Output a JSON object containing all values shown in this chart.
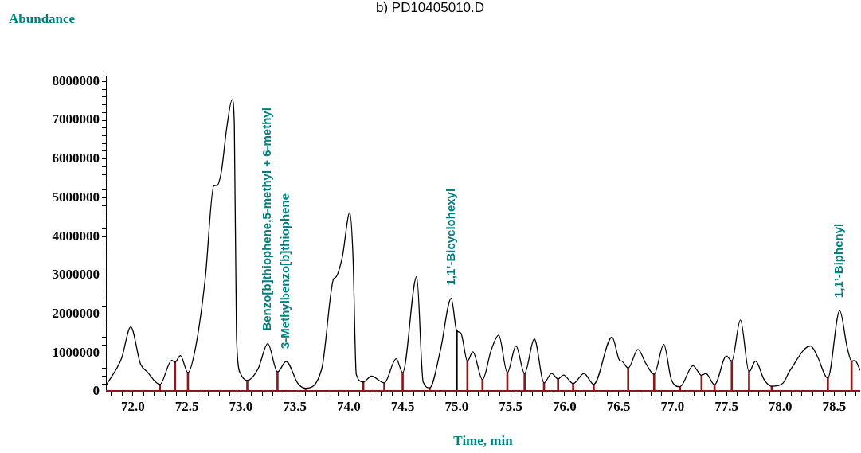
{
  "chart_data": {
    "type": "line",
    "title": "b) PD10405010.D",
    "xlabel": "Time, min",
    "ylabel": "Abundance",
    "xlim": [
      71.75,
      78.74
    ],
    "ylim": [
      0,
      8150000
    ],
    "xticks": [
      {
        "value": 71.8,
        "label": null
      },
      {
        "value": 71.9,
        "label": null
      },
      {
        "value": 72.0,
        "label": "72.0"
      },
      {
        "value": 72.1,
        "label": null
      },
      {
        "value": 72.2,
        "label": null
      },
      {
        "value": 72.3,
        "label": null
      },
      {
        "value": 72.4,
        "label": null
      },
      {
        "value": 72.5,
        "label": "72.5"
      },
      {
        "value": 72.6,
        "label": null
      },
      {
        "value": 72.7,
        "label": null
      },
      {
        "value": 72.8,
        "label": null
      },
      {
        "value": 72.9,
        "label": null
      },
      {
        "value": 73.0,
        "label": "73.0"
      },
      {
        "value": 73.1,
        "label": null
      },
      {
        "value": 73.2,
        "label": null
      },
      {
        "value": 73.3,
        "label": null
      },
      {
        "value": 73.4,
        "label": null
      },
      {
        "value": 73.5,
        "label": "73.5"
      },
      {
        "value": 73.6,
        "label": null
      },
      {
        "value": 73.7,
        "label": null
      },
      {
        "value": 73.8,
        "label": null
      },
      {
        "value": 73.9,
        "label": null
      },
      {
        "value": 74.0,
        "label": "74.0"
      },
      {
        "value": 74.1,
        "label": null
      },
      {
        "value": 74.2,
        "label": null
      },
      {
        "value": 74.3,
        "label": null
      },
      {
        "value": 74.4,
        "label": null
      },
      {
        "value": 74.5,
        "label": "74.5"
      },
      {
        "value": 74.6,
        "label": null
      },
      {
        "value": 74.7,
        "label": null
      },
      {
        "value": 74.8,
        "label": null
      },
      {
        "value": 74.9,
        "label": null
      },
      {
        "value": 75.0,
        "label": "75.0"
      },
      {
        "value": 75.1,
        "label": null
      },
      {
        "value": 75.2,
        "label": null
      },
      {
        "value": 75.3,
        "label": null
      },
      {
        "value": 75.4,
        "label": null
      },
      {
        "value": 75.5,
        "label": "75.5"
      },
      {
        "value": 75.6,
        "label": null
      },
      {
        "value": 75.7,
        "label": null
      },
      {
        "value": 75.8,
        "label": null
      },
      {
        "value": 75.9,
        "label": null
      },
      {
        "value": 76.0,
        "label": "76.0"
      },
      {
        "value": 76.1,
        "label": null
      },
      {
        "value": 76.2,
        "label": null
      },
      {
        "value": 76.3,
        "label": null
      },
      {
        "value": 76.4,
        "label": null
      },
      {
        "value": 76.5,
        "label": "76.5"
      },
      {
        "value": 76.6,
        "label": null
      },
      {
        "value": 76.7,
        "label": null
      },
      {
        "value": 76.8,
        "label": null
      },
      {
        "value": 76.9,
        "label": null
      },
      {
        "value": 77.0,
        "label": "77.0"
      },
      {
        "value": 77.1,
        "label": null
      },
      {
        "value": 77.2,
        "label": null
      },
      {
        "value": 77.3,
        "label": null
      },
      {
        "value": 77.4,
        "label": null
      },
      {
        "value": 77.5,
        "label": "77.5"
      },
      {
        "value": 77.6,
        "label": null
      },
      {
        "value": 77.7,
        "label": null
      },
      {
        "value": 77.8,
        "label": null
      },
      {
        "value": 77.9,
        "label": null
      },
      {
        "value": 78.0,
        "label": "78.0"
      },
      {
        "value": 78.1,
        "label": null
      },
      {
        "value": 78.2,
        "label": null
      },
      {
        "value": 78.3,
        "label": null
      },
      {
        "value": 78.4,
        "label": null
      },
      {
        "value": 78.5,
        "label": "78.5"
      },
      {
        "value": 78.6,
        "label": null
      },
      {
        "value": 78.7,
        "label": null
      }
    ],
    "yticks": [
      0,
      {
        "value": 200000,
        "label": null
      },
      {
        "value": 400000,
        "label": null
      },
      {
        "value": 600000,
        "label": null
      },
      {
        "value": 800000,
        "label": null
      },
      1000000,
      {
        "value": 1200000,
        "label": null
      },
      {
        "value": 1400000,
        "label": null
      },
      {
        "value": 1600000,
        "label": null
      },
      {
        "value": 1800000,
        "label": null
      },
      2000000,
      {
        "value": 2200000,
        "label": null
      },
      {
        "value": 2400000,
        "label": null
      },
      {
        "value": 2600000,
        "label": null
      },
      {
        "value": 2800000,
        "label": null
      },
      3000000,
      {
        "value": 3200000,
        "label": null
      },
      {
        "value": 3400000,
        "label": null
      },
      {
        "value": 3600000,
        "label": null
      },
      {
        "value": 3800000,
        "label": null
      },
      4000000,
      {
        "value": 4200000,
        "label": null
      },
      {
        "value": 4400000,
        "label": null
      },
      {
        "value": 4600000,
        "label": null
      },
      {
        "value": 4800000,
        "label": null
      },
      5000000,
      {
        "value": 5200000,
        "label": null
      },
      {
        "value": 5400000,
        "label": null
      },
      {
        "value": 5600000,
        "label": null
      },
      {
        "value": 5800000,
        "label": null
      },
      6000000,
      {
        "value": 6200000,
        "label": null
      },
      {
        "value": 6400000,
        "label": null
      },
      {
        "value": 6600000,
        "label": null
      },
      {
        "value": 6800000,
        "label": null
      },
      7000000,
      {
        "value": 7200000,
        "label": null
      },
      {
        "value": 7400000,
        "label": null
      },
      {
        "value": 7600000,
        "label": null
      },
      {
        "value": 7800000,
        "label": null
      },
      8000000
    ],
    "grid": false,
    "legend": false,
    "marker": "none",
    "line_style": "solid",
    "series": [
      {
        "color": "#000000",
        "x": [
          71.755,
          71.895,
          71.98,
          72.07,
          72.13,
          72.25,
          72.36,
          72.39,
          72.44,
          72.51,
          72.58,
          72.67,
          72.75,
          72.78,
          72.82,
          72.87,
          72.92,
          72.94,
          72.96,
          73.0,
          73.06,
          73.16,
          73.25,
          73.34,
          73.42,
          73.53,
          73.6,
          73.75,
          73.86,
          73.88,
          73.94,
          74.01,
          74.04,
          74.07,
          74.135,
          74.21,
          74.33,
          74.44,
          74.5,
          74.63,
          74.69,
          74.75,
          74.85,
          74.95,
          75.0,
          75.04,
          75.1,
          75.15,
          75.24,
          75.32,
          75.39,
          75.47,
          75.55,
          75.63,
          75.72,
          75.81,
          75.88,
          75.94,
          75.99,
          76.08,
          76.18,
          76.27,
          76.44,
          76.51,
          76.53,
          76.59,
          76.68,
          76.755,
          76.83,
          76.92,
          76.99,
          77.07,
          77.19,
          77.27,
          77.31,
          77.39,
          77.5,
          77.55,
          77.63,
          77.71,
          77.77,
          77.85,
          77.92,
          78.02,
          78.09,
          78.28,
          78.34,
          78.44,
          78.55,
          78.62,
          78.66,
          78.69,
          78.74
        ],
        "values": [
          180000,
          860000,
          1670000,
          720000,
          520000,
          190000,
          810000,
          760000,
          930000,
          490000,
          1130000,
          2910000,
          5310000,
          5320000,
          5680000,
          6810000,
          7530000,
          6880000,
          1410000,
          450000,
          290000,
          590000,
          1240000,
          510000,
          780000,
          210000,
          90000,
          590000,
          2910000,
          2950000,
          3460000,
          4620000,
          3470000,
          450000,
          250000,
          400000,
          230000,
          850000,
          490000,
          2970000,
          250000,
          100000,
          1070000,
          2410000,
          1580000,
          1510000,
          790000,
          1030000,
          310000,
          1070000,
          1460000,
          490000,
          1180000,
          470000,
          1360000,
          230000,
          470000,
          330000,
          430000,
          210000,
          470000,
          190000,
          1410000,
          810000,
          790000,
          610000,
          1090000,
          720000,
          450000,
          1220000,
          310000,
          130000,
          670000,
          420000,
          470000,
          180000,
          920000,
          790000,
          1850000,
          510000,
          790000,
          310000,
          140000,
          210000,
          550000,
          1180000,
          930000,
          350000,
          2090000,
          1130000,
          790000,
          810000,
          550000
        ]
      },
      {
        "type": "bar",
        "x": [
          72.25,
          72.39,
          72.51,
          73.06,
          73.34,
          73.6,
          74.135,
          74.33,
          74.5,
          74.75,
          75.0,
          75.1,
          75.24,
          75.47,
          75.63,
          75.81,
          75.94,
          76.08,
          76.27,
          76.59,
          76.83,
          77.07,
          77.27,
          77.39,
          77.55,
          77.71,
          77.92,
          78.44,
          78.66
        ],
        "values": [
          190000,
          760000,
          490000,
          290000,
          510000,
          90000,
          250000,
          230000,
          490000,
          100000,
          1580000,
          790000,
          310000,
          490000,
          470000,
          230000,
          330000,
          210000,
          190000,
          610000,
          450000,
          130000,
          420000,
          180000,
          790000,
          510000,
          140000,
          350000,
          790000
        ],
        "colors": [
          "#8b1a1a",
          "#8b1a1a",
          "#8b1a1a",
          "#8b1a1a",
          "#8b1a1a",
          "#8b1a1a",
          "#8b1a1a",
          "#8b1a1a",
          "#8b1a1a",
          "#8b1a1a",
          "#000000",
          "#8b1a1a",
          "#8b1a1a",
          "#8b1a1a",
          "#8b1a1a",
          "#8b1a1a",
          "#8b1a1a",
          "#8b1a1a",
          "#8b1a1a",
          "#8b1a1a",
          "#8b1a1a",
          "#8b1a1a",
          "#8b1a1a",
          "#8b1a1a",
          "#8b1a1a",
          "#8b1a1a",
          "#8b1a1a",
          "#8b1a1a",
          "#8b1a1a"
        ]
      }
    ],
    "ref_lines": [
      {
        "axis": "y",
        "value": 0,
        "color": "#8b1a1a"
      }
    ],
    "annotations": [
      {
        "text": "Benzo[b]thiophene,5-methyl + 6-methyl",
        "x": 73.25,
        "y": 1240000
      },
      {
        "text": "3-Methylbenzo[b]thiophene",
        "x": 73.42,
        "y": 780000
      },
      {
        "text": "1,1’-Bicyclohexyl",
        "x": 74.95,
        "y": 2410000
      },
      {
        "text": "1,1’-Biphenyl",
        "x": 78.55,
        "y": 2090000
      }
    ]
  }
}
